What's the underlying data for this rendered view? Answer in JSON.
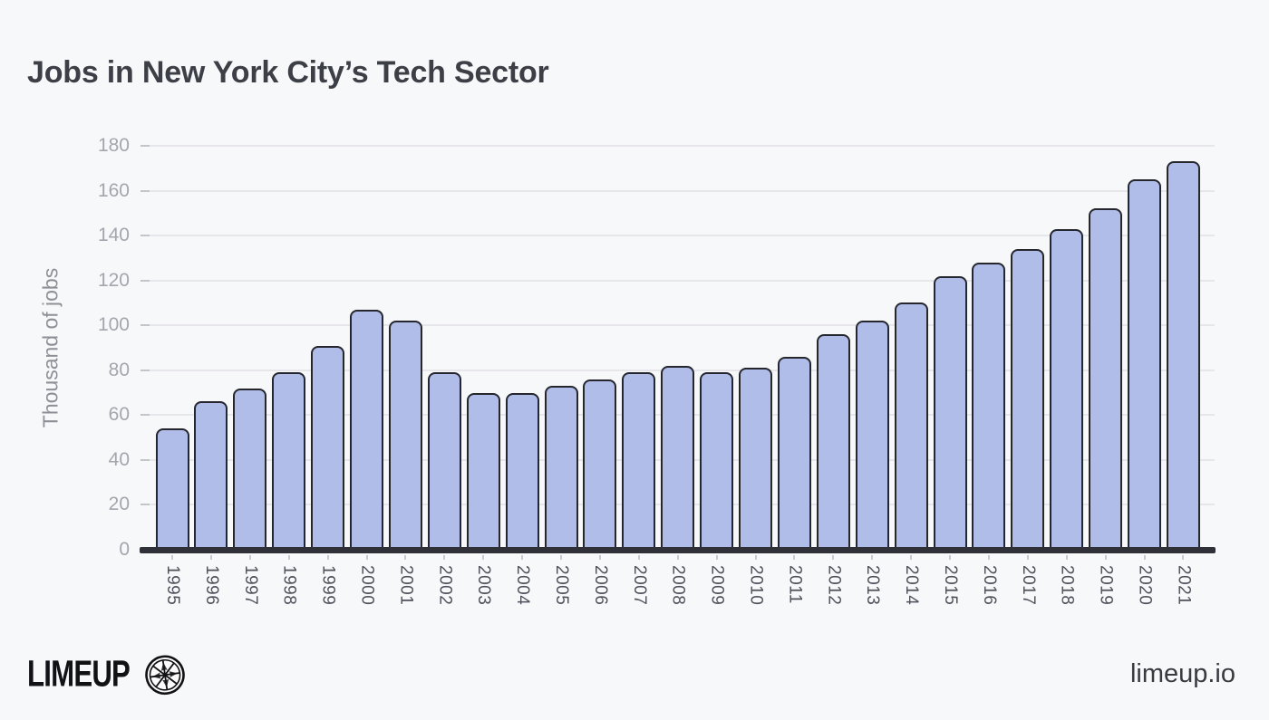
{
  "page": {
    "title": "Jobs in New York City’s Tech Sector",
    "footer": {
      "brand": "LIMEUP",
      "brand_icon": "lime-slice-icon",
      "url": "limeup.io"
    }
  },
  "colors": {
    "background": "#f7f8fa",
    "bar_fill": "#b1bde9",
    "bar_border": "#25262e",
    "baseline": "#2f3038",
    "gridline": "#e7e7eb",
    "y_tick_label": "#a5a5ad",
    "x_tick_label": "#4f505a",
    "title_text": "#3c3f46"
  },
  "chart_data": {
    "type": "bar",
    "title": "Jobs in New York City’s Tech Sector",
    "xlabel": "",
    "ylabel": "Thousand of jobs",
    "ylim": [
      0,
      180
    ],
    "ytick_step": 20,
    "ytick_labels": [
      "0",
      "20",
      "40",
      "60",
      "80",
      "100",
      "120",
      "140",
      "160",
      "180"
    ],
    "grid": "horizontal",
    "legend": "none",
    "categories": [
      "1995",
      "1996",
      "1997",
      "1998",
      "1999",
      "2000",
      "2001",
      "2002",
      "2003",
      "2004",
      "2005",
      "2006",
      "2007",
      "2008",
      "2009",
      "2010",
      "2011",
      "2012",
      "2013",
      "2014",
      "2015",
      "2016",
      "2017",
      "2018",
      "2019",
      "2020",
      "2021"
    ],
    "values": [
      54,
      66,
      72,
      79,
      91,
      107,
      102,
      79,
      70,
      70,
      73,
      76,
      79,
      82,
      79,
      81,
      86,
      96,
      102,
      110,
      122,
      128,
      134,
      143,
      152,
      165,
      173
    ]
  }
}
